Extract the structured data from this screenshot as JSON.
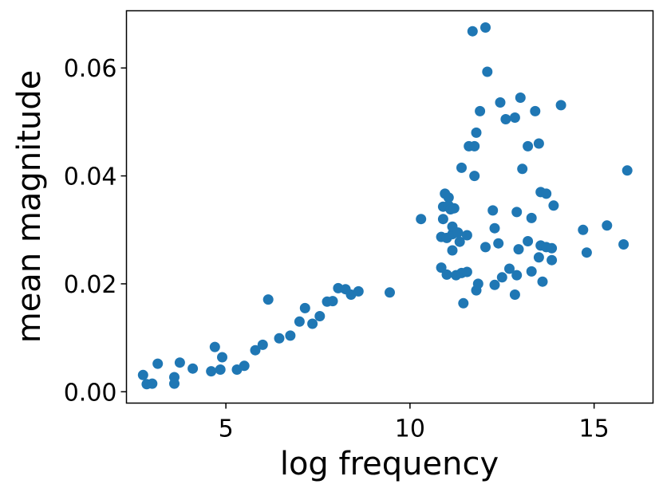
{
  "chart_data": {
    "type": "scatter",
    "title": "",
    "xlabel": "log frequency",
    "ylabel": "mean magnitude",
    "xlim": [
      2.3,
      16.6
    ],
    "ylim": [
      -0.0021,
      0.0706
    ],
    "xticks": [
      {
        "value": 5,
        "label": "5"
      },
      {
        "value": 10,
        "label": "10"
      },
      {
        "value": 15,
        "label": "15"
      }
    ],
    "yticks": [
      {
        "value": 0.0,
        "label": "0.00"
      },
      {
        "value": 0.02,
        "label": "0.02"
      },
      {
        "value": 0.04,
        "label": "0.04"
      },
      {
        "value": 0.06,
        "label": "0.06"
      }
    ],
    "grid": false,
    "legend": false,
    "marker_color": "#1f77b4",
    "points": [
      [
        2.75,
        0.0031
      ],
      [
        2.85,
        0.0014
      ],
      [
        3.0,
        0.0015
      ],
      [
        3.15,
        0.0052
      ],
      [
        3.6,
        0.0027
      ],
      [
        3.6,
        0.0015
      ],
      [
        3.75,
        0.0054
      ],
      [
        4.1,
        0.0043
      ],
      [
        4.6,
        0.0038
      ],
      [
        4.7,
        0.0083
      ],
      [
        4.85,
        0.0041
      ],
      [
        4.9,
        0.0064
      ],
      [
        5.3,
        0.0041
      ],
      [
        5.5,
        0.0048
      ],
      [
        5.8,
        0.0077
      ],
      [
        6.0,
        0.0087
      ],
      [
        6.15,
        0.0171
      ],
      [
        6.45,
        0.0099
      ],
      [
        6.75,
        0.0104
      ],
      [
        7.0,
        0.013
      ],
      [
        7.15,
        0.0155
      ],
      [
        7.35,
        0.0126
      ],
      [
        7.55,
        0.014
      ],
      [
        7.75,
        0.0167
      ],
      [
        7.9,
        0.0168
      ],
      [
        8.05,
        0.0192
      ],
      [
        8.25,
        0.019
      ],
      [
        8.4,
        0.018
      ],
      [
        8.6,
        0.0186
      ],
      [
        9.45,
        0.0184
      ],
      [
        10.3,
        0.032
      ],
      [
        10.85,
        0.0287
      ],
      [
        10.85,
        0.023
      ],
      [
        10.9,
        0.0343
      ],
      [
        10.9,
        0.032
      ],
      [
        10.95,
        0.0367
      ],
      [
        11.0,
        0.0217
      ],
      [
        11.0,
        0.0285
      ],
      [
        11.05,
        0.036
      ],
      [
        11.05,
        0.0345
      ],
      [
        11.1,
        0.0338
      ],
      [
        11.15,
        0.0292
      ],
      [
        11.15,
        0.0306
      ],
      [
        11.15,
        0.0262
      ],
      [
        11.2,
        0.034
      ],
      [
        11.25,
        0.0216
      ],
      [
        11.3,
        0.0295
      ],
      [
        11.35,
        0.0278
      ],
      [
        11.4,
        0.022
      ],
      [
        11.4,
        0.0415
      ],
      [
        11.45,
        0.0164
      ],
      [
        11.55,
        0.029
      ],
      [
        11.55,
        0.0222
      ],
      [
        11.6,
        0.0455
      ],
      [
        11.7,
        0.0668
      ],
      [
        11.75,
        0.0455
      ],
      [
        11.75,
        0.04
      ],
      [
        11.8,
        0.0188
      ],
      [
        11.8,
        0.048
      ],
      [
        11.85,
        0.02
      ],
      [
        11.9,
        0.052
      ],
      [
        12.05,
        0.0268
      ],
      [
        12.05,
        0.0675
      ],
      [
        12.1,
        0.0593
      ],
      [
        12.25,
        0.0336
      ],
      [
        12.3,
        0.0303
      ],
      [
        12.3,
        0.0198
      ],
      [
        12.4,
        0.0275
      ],
      [
        12.45,
        0.0536
      ],
      [
        12.5,
        0.0212
      ],
      [
        12.6,
        0.0505
      ],
      [
        12.7,
        0.0228
      ],
      [
        12.85,
        0.0508
      ],
      [
        12.85,
        0.018
      ],
      [
        12.9,
        0.0333
      ],
      [
        12.9,
        0.0216
      ],
      [
        12.95,
        0.0264
      ],
      [
        13.0,
        0.0545
      ],
      [
        13.05,
        0.0413
      ],
      [
        13.2,
        0.0455
      ],
      [
        13.2,
        0.0279
      ],
      [
        13.3,
        0.0223
      ],
      [
        13.3,
        0.0322
      ],
      [
        13.4,
        0.052
      ],
      [
        13.5,
        0.046
      ],
      [
        13.5,
        0.0249
      ],
      [
        13.55,
        0.037
      ],
      [
        13.55,
        0.0271
      ],
      [
        13.6,
        0.0204
      ],
      [
        13.7,
        0.0367
      ],
      [
        13.7,
        0.0268
      ],
      [
        13.85,
        0.0244
      ],
      [
        13.85,
        0.0266
      ],
      [
        13.9,
        0.0345
      ],
      [
        14.1,
        0.0531
      ],
      [
        14.7,
        0.03
      ],
      [
        14.8,
        0.0258
      ],
      [
        15.35,
        0.0308
      ],
      [
        15.8,
        0.0273
      ],
      [
        15.9,
        0.041
      ]
    ]
  }
}
